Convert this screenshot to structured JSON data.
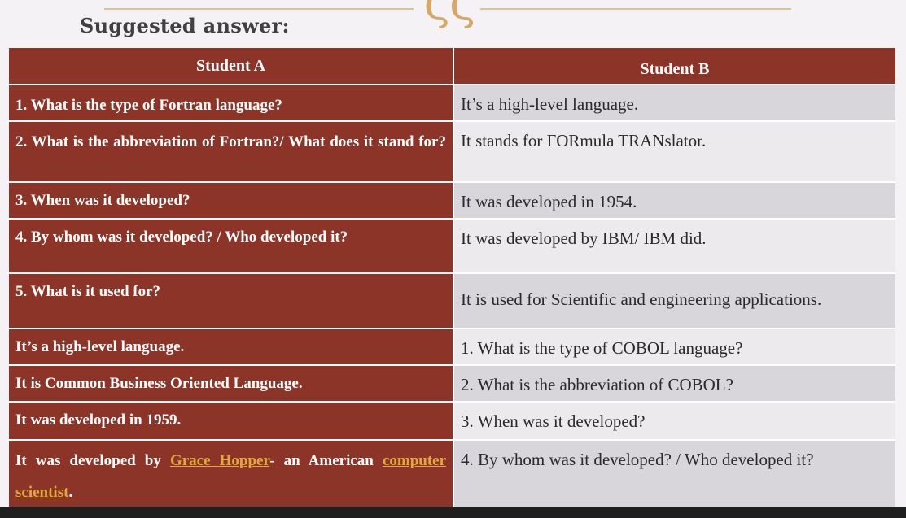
{
  "heading": "Suggested answer:",
  "colors": {
    "header_bg": "#8b3427",
    "link": "#e1a93a",
    "alt_row": "#d8d6da",
    "plain_row": "#eceaed"
  },
  "header": {
    "student_a": "Student A",
    "student_b": "Student B"
  },
  "rows": [
    {
      "a": "1. What is the type of Fortran language?",
      "b": "It’s a high-level language."
    },
    {
      "a": "2. What is the abbreviation of Fortran?/ What does it stand for?",
      "b": "It stands for FORmula TRANslator."
    },
    {
      "a": "3. When was it developed?",
      "b": "It was developed in 1954."
    },
    {
      "a": "4. By whom was it  developed? / Who developed it?",
      "b": "It was developed by IBM/ IBM did."
    },
    {
      "a": "5. What is it used for?",
      "b": "It is used for Scientific and engineering applications."
    },
    {
      "a": "It’s a high-level language.",
      "b": "1. What is the type of COBOL language?"
    },
    {
      "a": "It is Common Business Oriented Language.",
      "b": "2. What is the abbreviation of COBOL?"
    },
    {
      "a": "It was developed in 1959.",
      "b": "3. When was it developed?"
    },
    {
      "a_prefix": "It was developed by",
      "a_link1": "Grace Hopper",
      "a_mid": "- an American",
      "a_link2": "computer scientist",
      "a_suffix": ".",
      "b": "4. By whom was it  developed? / Who developed it?"
    }
  ]
}
